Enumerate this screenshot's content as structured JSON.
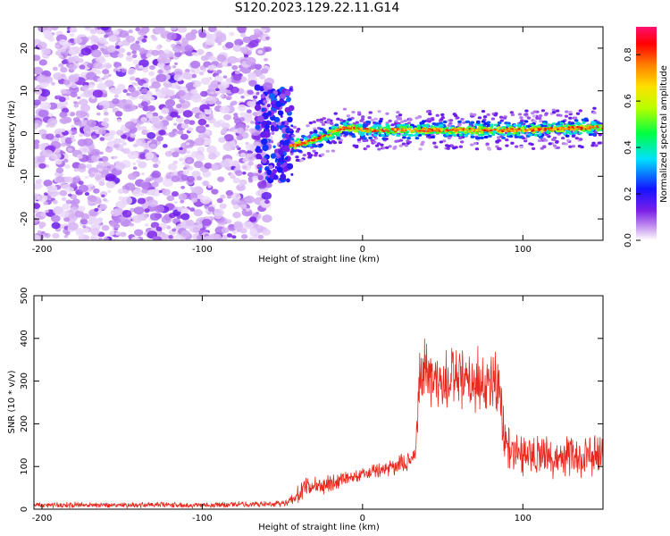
{
  "title": "S120.2023.129.22.11.G14",
  "chart_data": [
    {
      "type": "heatmap",
      "xlabel": "Height of straight line (km)",
      "ylabel": "Frequency (Hz)",
      "xlim": [
        -205,
        150
      ],
      "ylim": [
        -25,
        25
      ],
      "x_ticks": [
        -200,
        -100,
        0,
        100
      ],
      "y_ticks": [
        -20,
        -10,
        0,
        10,
        20
      ],
      "grid": false,
      "colorbar": {
        "label": "Normalized spectral amplitude",
        "ticks": [
          "0.0",
          "0.2",
          "0.4",
          "0.6",
          "0.8"
        ],
        "range": [
          0,
          0.92
        ],
        "colormap": "rainbow (white-purple-blue-cyan-green-yellow-orange-red-magenta)"
      },
      "regions": [
        {
          "name": "noise",
          "x_range": [
            -205,
            -58
          ],
          "freq_range": [
            -25,
            25
          ],
          "amplitude": "low (0.0-0.15)"
        },
        {
          "name": "transition",
          "x_range": [
            -65,
            -45
          ],
          "freq_range": [
            -12,
            11
          ],
          "amplitude": "low-mid (0.1-0.35)"
        },
        {
          "name": "carrier",
          "x_range": [
            -45,
            150
          ],
          "freq_center": [
            [
              -45,
              -3
            ],
            [
              -30,
              -1.5
            ],
            [
              -20,
              0
            ],
            [
              -10,
              1.5
            ],
            [
              0,
              0.8
            ],
            [
              50,
              0.8
            ],
            [
              100,
              0.8
            ],
            [
              150,
              1.5
            ]
          ],
          "amplitude": "high (0.4-0.92)"
        }
      ]
    },
    {
      "type": "line",
      "xlabel": "Height of straight line (km)",
      "ylabel": "SNR (10 * v/v)",
      "xlim": [
        -205,
        150
      ],
      "ylim": [
        0,
        500
      ],
      "x_ticks": [
        -200,
        -100,
        0,
        100
      ],
      "y_ticks": [
        0,
        100,
        200,
        300,
        400,
        500
      ],
      "grid": false,
      "series": [
        {
          "color": "#e8281e",
          "x": [
            -205,
            -150,
            -100,
            -60,
            -48,
            -42,
            -38,
            -30,
            -20,
            -10,
            0,
            10,
            20,
            30,
            33,
            35,
            37,
            40,
            45,
            50,
            55,
            60,
            65,
            70,
            75,
            80,
            85,
            88,
            90,
            95,
            100,
            110,
            120,
            130,
            140,
            150
          ],
          "values": [
            10,
            10,
            10,
            12,
            15,
            25,
            45,
            55,
            60,
            75,
            80,
            90,
            100,
            115,
            130,
            280,
            330,
            320,
            300,
            290,
            310,
            300,
            290,
            300,
            290,
            300,
            290,
            180,
            150,
            140,
            130,
            130,
            120,
            120,
            125,
            130
          ],
          "spread": [
            8,
            8,
            8,
            8,
            10,
            20,
            30,
            25,
            25,
            20,
            20,
            20,
            25,
            25,
            30,
            90,
            110,
            100,
            90,
            90,
            90,
            90,
            90,
            90,
            90,
            90,
            90,
            70,
            60,
            55,
            55,
            55,
            55,
            55,
            55,
            55
          ]
        }
      ]
    }
  ]
}
